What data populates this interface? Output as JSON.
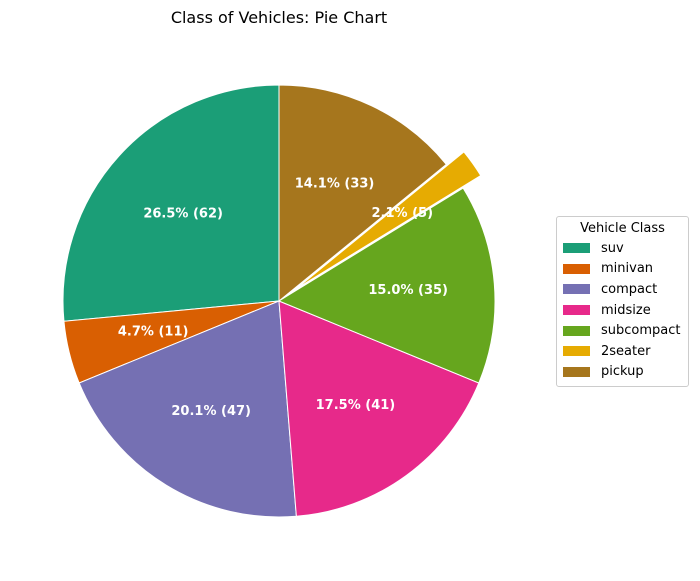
{
  "chart_data": {
    "type": "pie",
    "title": "Class of Vehicles: Pie Chart",
    "legend_title": "Vehicle Class",
    "legend_placement": "center-right",
    "start_angle_deg": 90,
    "direction": "counterclockwise",
    "slices": [
      {
        "label": "suv",
        "value": 62,
        "pct_label": "26.5% (62)",
        "color": "#1b9e77",
        "explode": false
      },
      {
        "label": "minivan",
        "value": 11,
        "pct_label": "4.7% (11)",
        "color": "#d95f02",
        "explode": false
      },
      {
        "label": "compact",
        "value": 47,
        "pct_label": "20.1% (47)",
        "color": "#7570b3",
        "explode": false
      },
      {
        "label": "midsize",
        "value": 41,
        "pct_label": "17.5% (41)",
        "color": "#e7298a",
        "explode": false
      },
      {
        "label": "subcompact",
        "value": 35,
        "pct_label": "15.0% (35)",
        "color": "#66a61e",
        "explode": false
      },
      {
        "label": "2seater",
        "value": 5,
        "pct_label": "2.1% (5)",
        "color": "#e6ab02",
        "explode": true
      },
      {
        "label": "pickup",
        "value": 33,
        "pct_label": "14.1% (33)",
        "color": "#a6761d",
        "explode": false
      }
    ]
  }
}
